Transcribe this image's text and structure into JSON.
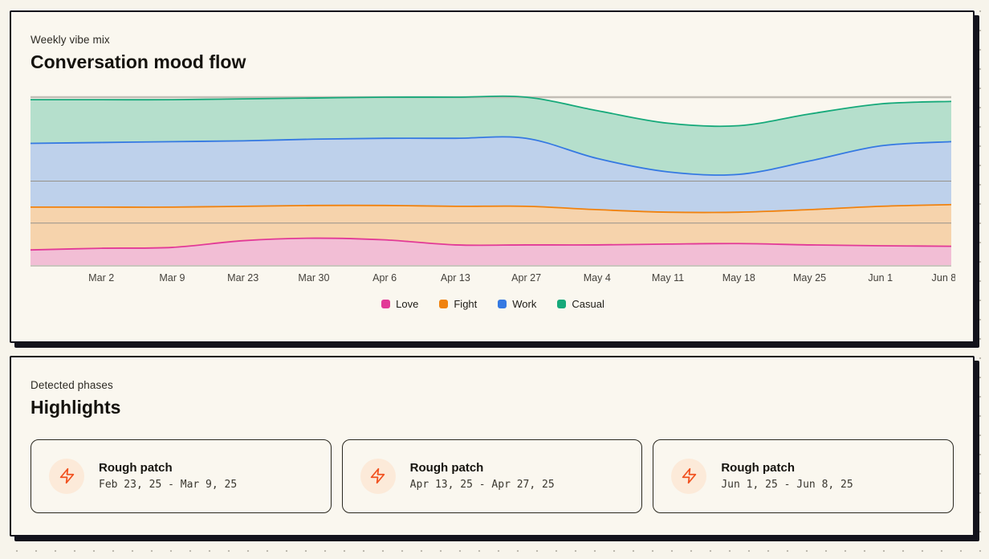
{
  "colors": {
    "page_bg": "#f7f4eb",
    "card_bg": "#faf7ef",
    "card_border": "#13131c",
    "love": "#e23a97",
    "fight": "#f0820f",
    "work": "#3579e2",
    "casual": "#16a97a",
    "gridline": "#96928a",
    "top_rule": "#c2beb6",
    "baseline": "#c9c5bd",
    "tick_label": "#44413b",
    "highlight_icon": "#f1511f",
    "highlight_icon_bg": "#fcead9"
  },
  "mood_card": {
    "subtitle": "Weekly vibe mix",
    "title": "Conversation mood flow"
  },
  "chart_data": {
    "type": "area",
    "stacked": true,
    "title": "Conversation mood flow",
    "xlabel": "",
    "ylabel": "",
    "ylim": [
      0,
      1
    ],
    "grid": true,
    "visible_gridlines": [
      0.25,
      0.5,
      1.0
    ],
    "legend_position": "bottom",
    "first_point_unlabeled": true,
    "categories": [
      "",
      "Mar 2",
      "Mar 9",
      "Mar 23",
      "Mar 30",
      "Apr 6",
      "Apr 13",
      "Apr 27",
      "May 4",
      "May 11",
      "May 18",
      "May 25",
      "Jun 1",
      "Jun 8"
    ],
    "series": [
      {
        "name": "Love",
        "color": "#e23a97",
        "values": [
          0.09,
          0.1,
          0.105,
          0.145,
          0.16,
          0.15,
          0.12,
          0.12,
          0.12,
          0.125,
          0.128,
          0.12,
          0.115,
          0.112
        ]
      },
      {
        "name": "Fight",
        "color": "#f0820f",
        "values": [
          0.255,
          0.245,
          0.24,
          0.205,
          0.195,
          0.205,
          0.23,
          0.23,
          0.21,
          0.19,
          0.187,
          0.21,
          0.235,
          0.248
        ]
      },
      {
        "name": "Work",
        "color": "#3579e2",
        "values": [
          0.38,
          0.385,
          0.39,
          0.39,
          0.395,
          0.4,
          0.405,
          0.405,
          0.305,
          0.24,
          0.225,
          0.29,
          0.36,
          0.375
        ]
      },
      {
        "name": "Casual",
        "color": "#16a97a",
        "values": [
          0.26,
          0.255,
          0.25,
          0.25,
          0.245,
          0.245,
          0.245,
          0.245,
          0.285,
          0.29,
          0.29,
          0.28,
          0.25,
          0.24
        ]
      }
    ]
  },
  "highlights_card": {
    "subtitle": "Detected phases",
    "title": "Highlights",
    "icon": "zap-icon",
    "items": [
      {
        "title": "Rough patch",
        "range": "Feb 23, 25 - Mar 9, 25"
      },
      {
        "title": "Rough patch",
        "range": "Apr 13, 25 - Apr 27, 25"
      },
      {
        "title": "Rough patch",
        "range": "Jun 1, 25 - Jun 8, 25"
      }
    ]
  }
}
